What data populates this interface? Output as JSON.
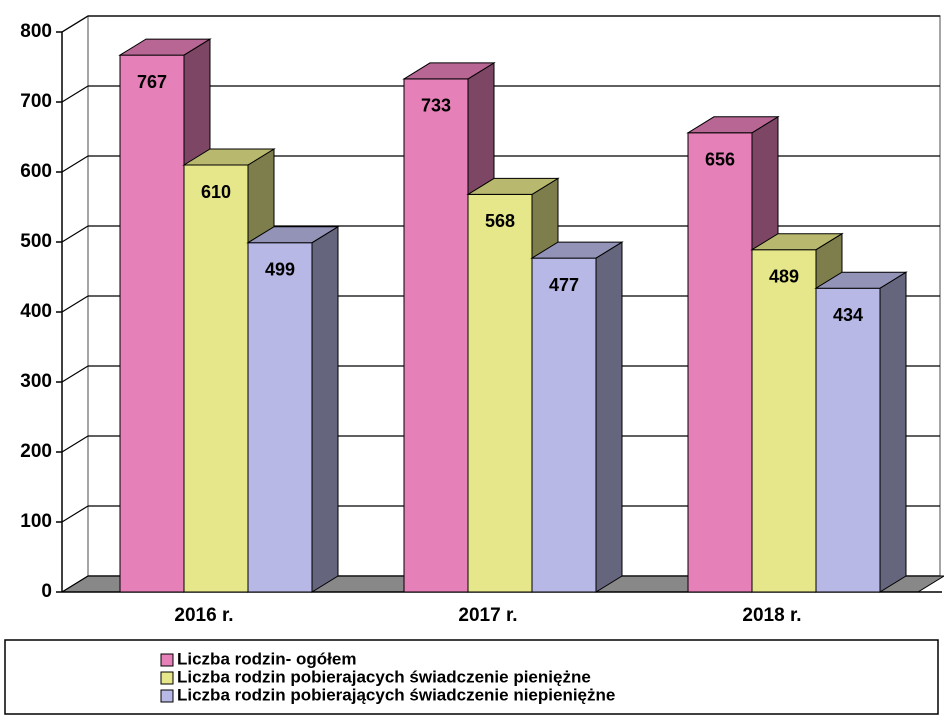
{
  "chart_data": {
    "type": "bar3d",
    "categories": [
      "2016 r.",
      "2017 r.",
      "2018 r."
    ],
    "series": [
      {
        "name": "Liczba rodzin- ogółem",
        "color": "#e680b8",
        "values": [
          767,
          733,
          656
        ]
      },
      {
        "name": "Liczba rodzin pobierajacych świadczenie pieniężne",
        "color": "#e6e68a",
        "values": [
          610,
          568,
          489
        ]
      },
      {
        "name": "Liczba rodzin pobierających świadczenie niepieniężne",
        "color": "#b8b8e6",
        "values": [
          499,
          477,
          434
        ]
      }
    ],
    "ylim": [
      0,
      800
    ],
    "yticks": [
      0,
      100,
      200,
      300,
      400,
      500,
      600,
      700,
      800
    ],
    "grid": true,
    "legend": "bottom"
  }
}
